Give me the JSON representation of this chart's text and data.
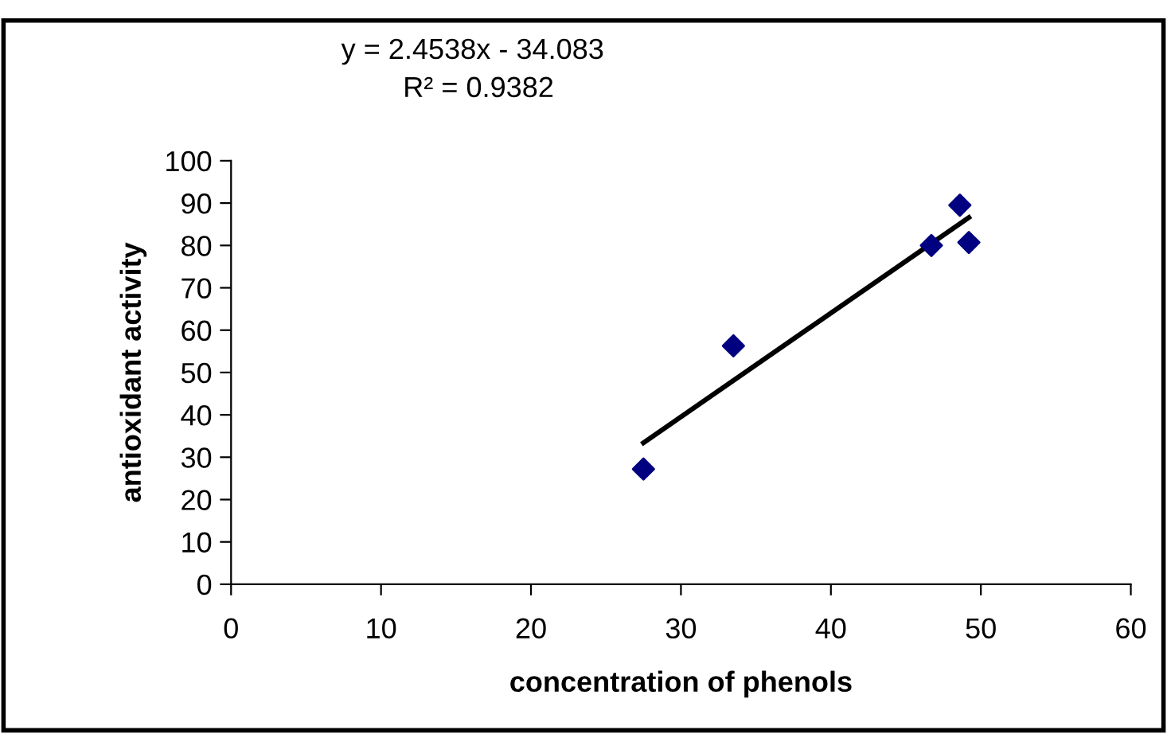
{
  "chart_data": {
    "type": "scatter",
    "xlabel": "concentration of phenols",
    "ylabel": "antioxidant activity",
    "annotations": [
      "y = 2.4538x - 34.083",
      "R² = 0.9382"
    ],
    "series": [
      {
        "color": "#000080",
        "marker": "diamond",
        "x": [
          27.5,
          33.5,
          46.7,
          48.6,
          49.2
        ],
        "values": [
          27.2,
          56.3,
          80.0,
          89.5,
          80.7
        ]
      },
      {
        "type": "line",
        "color": "#000000",
        "marker": "none",
        "line_style": "solid",
        "x": [
          27.5,
          49.2
        ],
        "values": [
          33.4,
          86.6
        ]
      }
    ],
    "xlim": [
      0,
      60
    ],
    "xticks": [
      0,
      10,
      20,
      30,
      40,
      50,
      60
    ],
    "ylim": [
      0,
      100
    ],
    "yticks": [
      0,
      10,
      20,
      30,
      40,
      50,
      60,
      70,
      80,
      90,
      100
    ],
    "grid": false,
    "legend": false
  }
}
